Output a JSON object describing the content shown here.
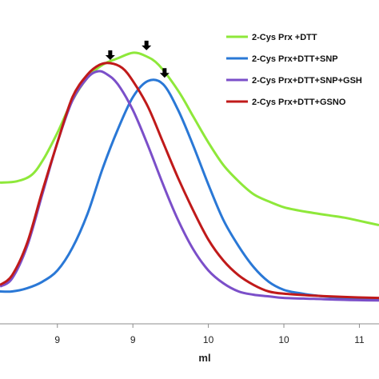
{
  "chart_data": {
    "type": "line",
    "title": "",
    "xlabel": "ml",
    "ylabel": "",
    "x_tick_labels": [
      "9",
      "9",
      "10",
      "10",
      "11"
    ],
    "x_tick_positions": [
      8.75,
      9.25,
      9.75,
      10.25,
      10.75
    ],
    "xlim": [
      8.37,
      10.88
    ],
    "ylim": [
      0,
      1
    ],
    "grid": false,
    "legend_position": "top-right",
    "series": [
      {
        "name": "2-Cys Prx +DTT",
        "color": "#8ee83a",
        "points": [
          [
            8.37,
            0.436
          ],
          [
            8.48,
            0.44
          ],
          [
            8.58,
            0.46
          ],
          [
            8.66,
            0.51
          ],
          [
            8.75,
            0.59
          ],
          [
            8.85,
            0.69
          ],
          [
            8.95,
            0.76
          ],
          [
            9.05,
            0.8
          ],
          [
            9.15,
            0.82
          ],
          [
            9.25,
            0.837
          ],
          [
            9.33,
            0.828
          ],
          [
            9.42,
            0.8
          ],
          [
            9.55,
            0.72
          ],
          [
            9.65,
            0.64
          ],
          [
            9.75,
            0.56
          ],
          [
            9.85,
            0.49
          ],
          [
            9.95,
            0.44
          ],
          [
            10.05,
            0.4
          ],
          [
            10.15,
            0.378
          ],
          [
            10.25,
            0.36
          ],
          [
            10.35,
            0.35
          ],
          [
            10.45,
            0.342
          ],
          [
            10.55,
            0.335
          ],
          [
            10.65,
            0.328
          ],
          [
            10.75,
            0.318
          ],
          [
            10.88,
            0.305
          ]
        ]
      },
      {
        "name": "2-Cys Prx+DTT+SNP",
        "color": "#2a78d6",
        "points": [
          [
            8.37,
            0.1
          ],
          [
            8.45,
            0.1
          ],
          [
            8.55,
            0.11
          ],
          [
            8.65,
            0.13
          ],
          [
            8.75,
            0.165
          ],
          [
            8.85,
            0.235
          ],
          [
            8.95,
            0.34
          ],
          [
            9.05,
            0.48
          ],
          [
            9.15,
            0.6
          ],
          [
            9.25,
            0.7
          ],
          [
            9.35,
            0.75
          ],
          [
            9.45,
            0.74
          ],
          [
            9.55,
            0.66
          ],
          [
            9.65,
            0.55
          ],
          [
            9.75,
            0.43
          ],
          [
            9.85,
            0.32
          ],
          [
            9.95,
            0.24
          ],
          [
            10.05,
            0.175
          ],
          [
            10.15,
            0.13
          ],
          [
            10.25,
            0.105
          ],
          [
            10.35,
            0.095
          ],
          [
            10.45,
            0.088
          ],
          [
            10.55,
            0.083
          ],
          [
            10.65,
            0.08
          ],
          [
            10.75,
            0.077
          ],
          [
            10.88,
            0.075
          ]
        ]
      },
      {
        "name": "2-Cys Prx+DTT+SNP+GSH",
        "color": "#7b4fc9",
        "points": [
          [
            8.37,
            0.115
          ],
          [
            8.45,
            0.14
          ],
          [
            8.55,
            0.24
          ],
          [
            8.65,
            0.4
          ],
          [
            8.75,
            0.56
          ],
          [
            8.85,
            0.69
          ],
          [
            8.95,
            0.76
          ],
          [
            9.02,
            0.78
          ],
          [
            9.08,
            0.77
          ],
          [
            9.15,
            0.74
          ],
          [
            9.25,
            0.66
          ],
          [
            9.35,
            0.55
          ],
          [
            9.45,
            0.43
          ],
          [
            9.55,
            0.32
          ],
          [
            9.65,
            0.23
          ],
          [
            9.75,
            0.165
          ],
          [
            9.85,
            0.125
          ],
          [
            9.95,
            0.1
          ],
          [
            10.05,
            0.09
          ],
          [
            10.15,
            0.085
          ],
          [
            10.25,
            0.08
          ],
          [
            10.45,
            0.077
          ],
          [
            10.65,
            0.074
          ],
          [
            10.88,
            0.072
          ]
        ]
      },
      {
        "name": "2-Cys Prx+DTT+GSNO",
        "color": "#c01a1a",
        "points": [
          [
            8.37,
            0.12
          ],
          [
            8.45,
            0.15
          ],
          [
            8.55,
            0.25
          ],
          [
            8.65,
            0.41
          ],
          [
            8.75,
            0.56
          ],
          [
            8.85,
            0.7
          ],
          [
            8.95,
            0.77
          ],
          [
            9.03,
            0.8
          ],
          [
            9.1,
            0.805
          ],
          [
            9.18,
            0.79
          ],
          [
            9.25,
            0.75
          ],
          [
            9.35,
            0.67
          ],
          [
            9.45,
            0.56
          ],
          [
            9.55,
            0.45
          ],
          [
            9.65,
            0.35
          ],
          [
            9.75,
            0.26
          ],
          [
            9.85,
            0.195
          ],
          [
            9.95,
            0.15
          ],
          [
            10.05,
            0.12
          ],
          [
            10.15,
            0.1
          ],
          [
            10.25,
            0.093
          ],
          [
            10.45,
            0.087
          ],
          [
            10.65,
            0.083
          ],
          [
            10.88,
            0.08
          ]
        ]
      }
    ],
    "annotations": [
      {
        "type": "down-arrow",
        "series_index": 0,
        "x": 9.34,
        "y": 0.835
      },
      {
        "type": "down-arrow",
        "series_index": 3,
        "x": 9.1,
        "y": 0.805
      },
      {
        "type": "down-arrow",
        "series_index": 1,
        "x": 9.46,
        "y": 0.75
      }
    ]
  }
}
